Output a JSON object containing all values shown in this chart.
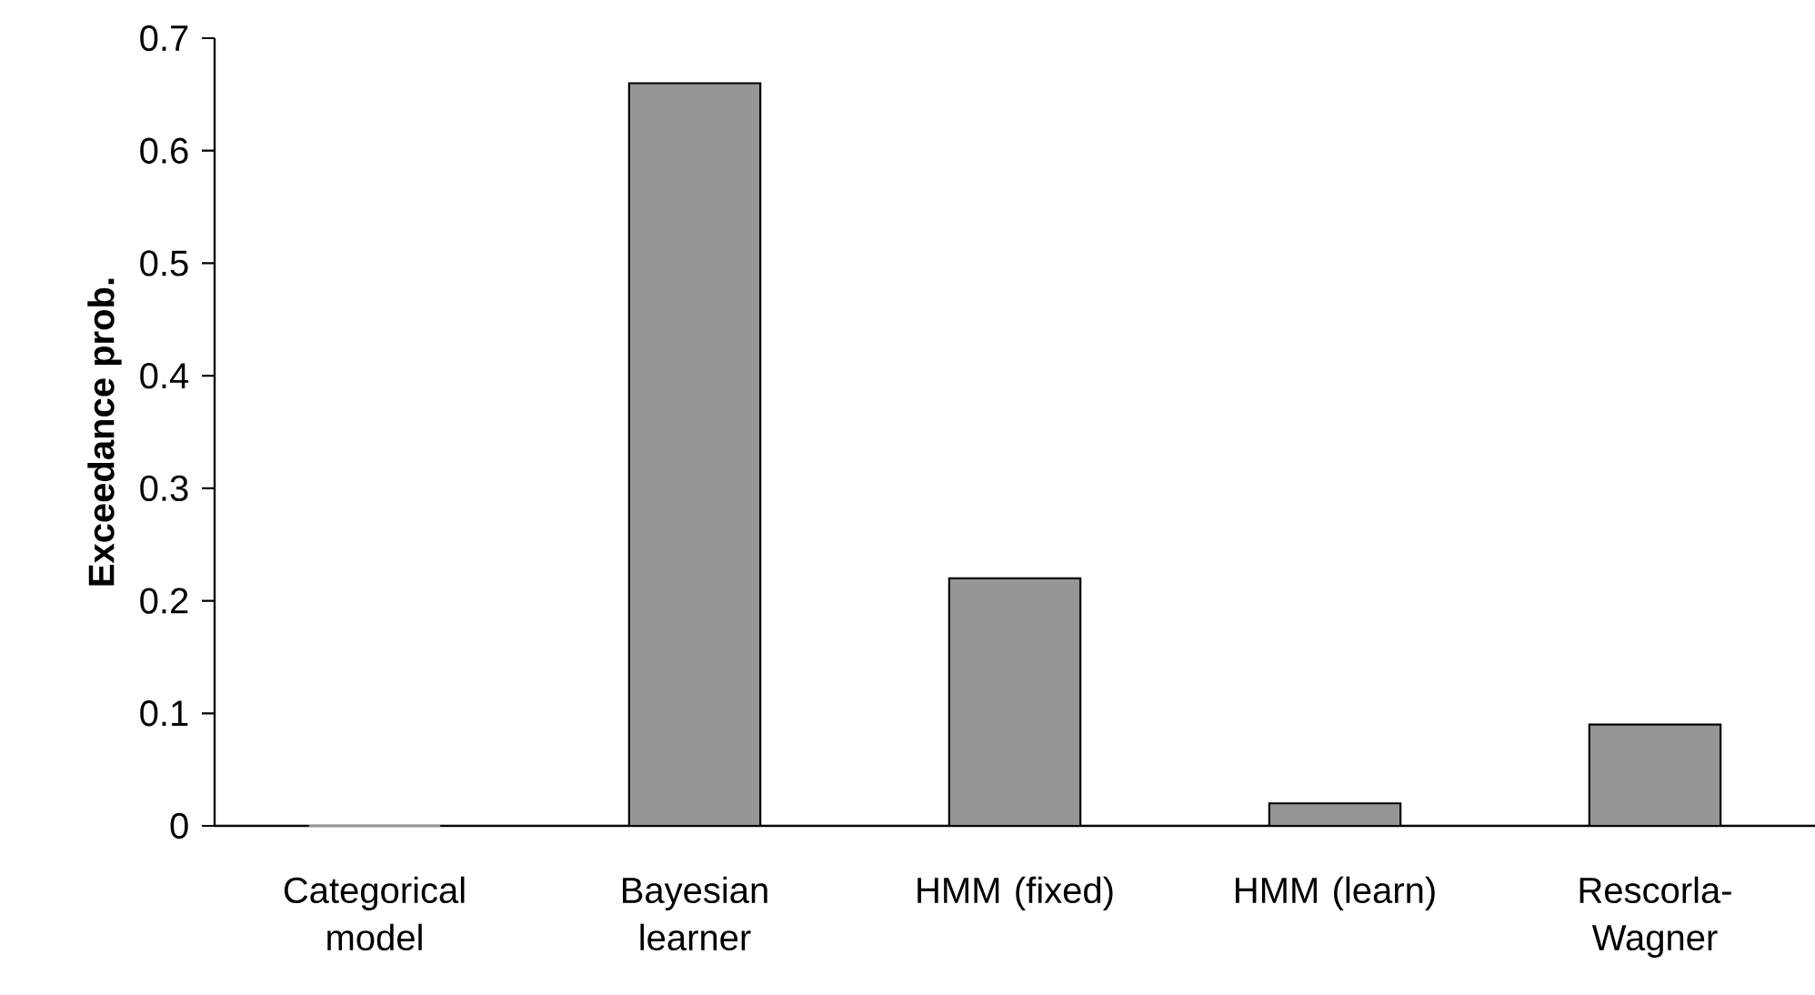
{
  "chart_data": {
    "type": "bar",
    "ylabel": "Exceedance prob.",
    "categories": [
      "Categorical model",
      "Bayesian learner",
      "HMM (fixed)",
      "HMM (learn)",
      "Rescorla-Wagner"
    ],
    "values": [
      0,
      0.66,
      0.22,
      0.02,
      0.09
    ],
    "color": "#969696",
    "ylim": [
      0,
      0.7
    ],
    "yticks": [
      0,
      0.1,
      0.2,
      0.3,
      0.4,
      0.5,
      0.6,
      0.7
    ]
  }
}
